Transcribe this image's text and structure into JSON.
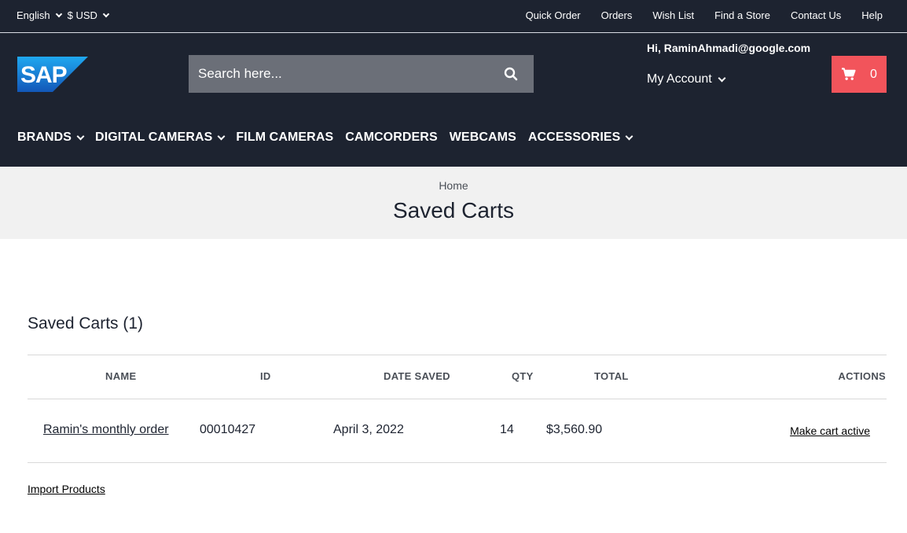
{
  "topbar": {
    "language": "English",
    "currency": "$ USD",
    "links": [
      "Quick Order",
      "Orders",
      "Wish List",
      "Find a Store",
      "Contact Us",
      "Help"
    ]
  },
  "header": {
    "logo_text": "SAP",
    "search_placeholder": "Search here...",
    "greeting": "Hi, RaminAhmadi@google.com",
    "account_label": "My Account",
    "cart_count": "0"
  },
  "nav": {
    "items": [
      "BRANDS",
      "DIGITAL CAMERAS",
      "FILM CAMERAS",
      "CAMCORDERS",
      "WEBCAMS",
      "ACCESSORIES"
    ]
  },
  "page": {
    "breadcrumb": "Home",
    "title": "Saved Carts"
  },
  "saved_carts": {
    "heading": "Saved Carts (1)",
    "columns": {
      "name": "NAME",
      "id": "ID",
      "date": "DATE SAVED",
      "qty": "QTY",
      "total": "TOTAL",
      "actions": "ACTIONS"
    },
    "rows": [
      {
        "name": "Ramin's monthly order",
        "id": "00010427",
        "date": "April 3, 2022",
        "qty": "14",
        "total": "$3,560.90",
        "action": "Make cart active"
      }
    ],
    "import_label": "Import Products"
  },
  "colors": {
    "header_bg": "#1d2330",
    "cart_bg": "#f2545b",
    "search_bg": "#6b6f78",
    "title_band_bg": "#f1f1f1",
    "logo_blue": "#1a6fd1"
  },
  "icons": [
    "search-icon",
    "cart-icon",
    "chevron-down-icon"
  ]
}
